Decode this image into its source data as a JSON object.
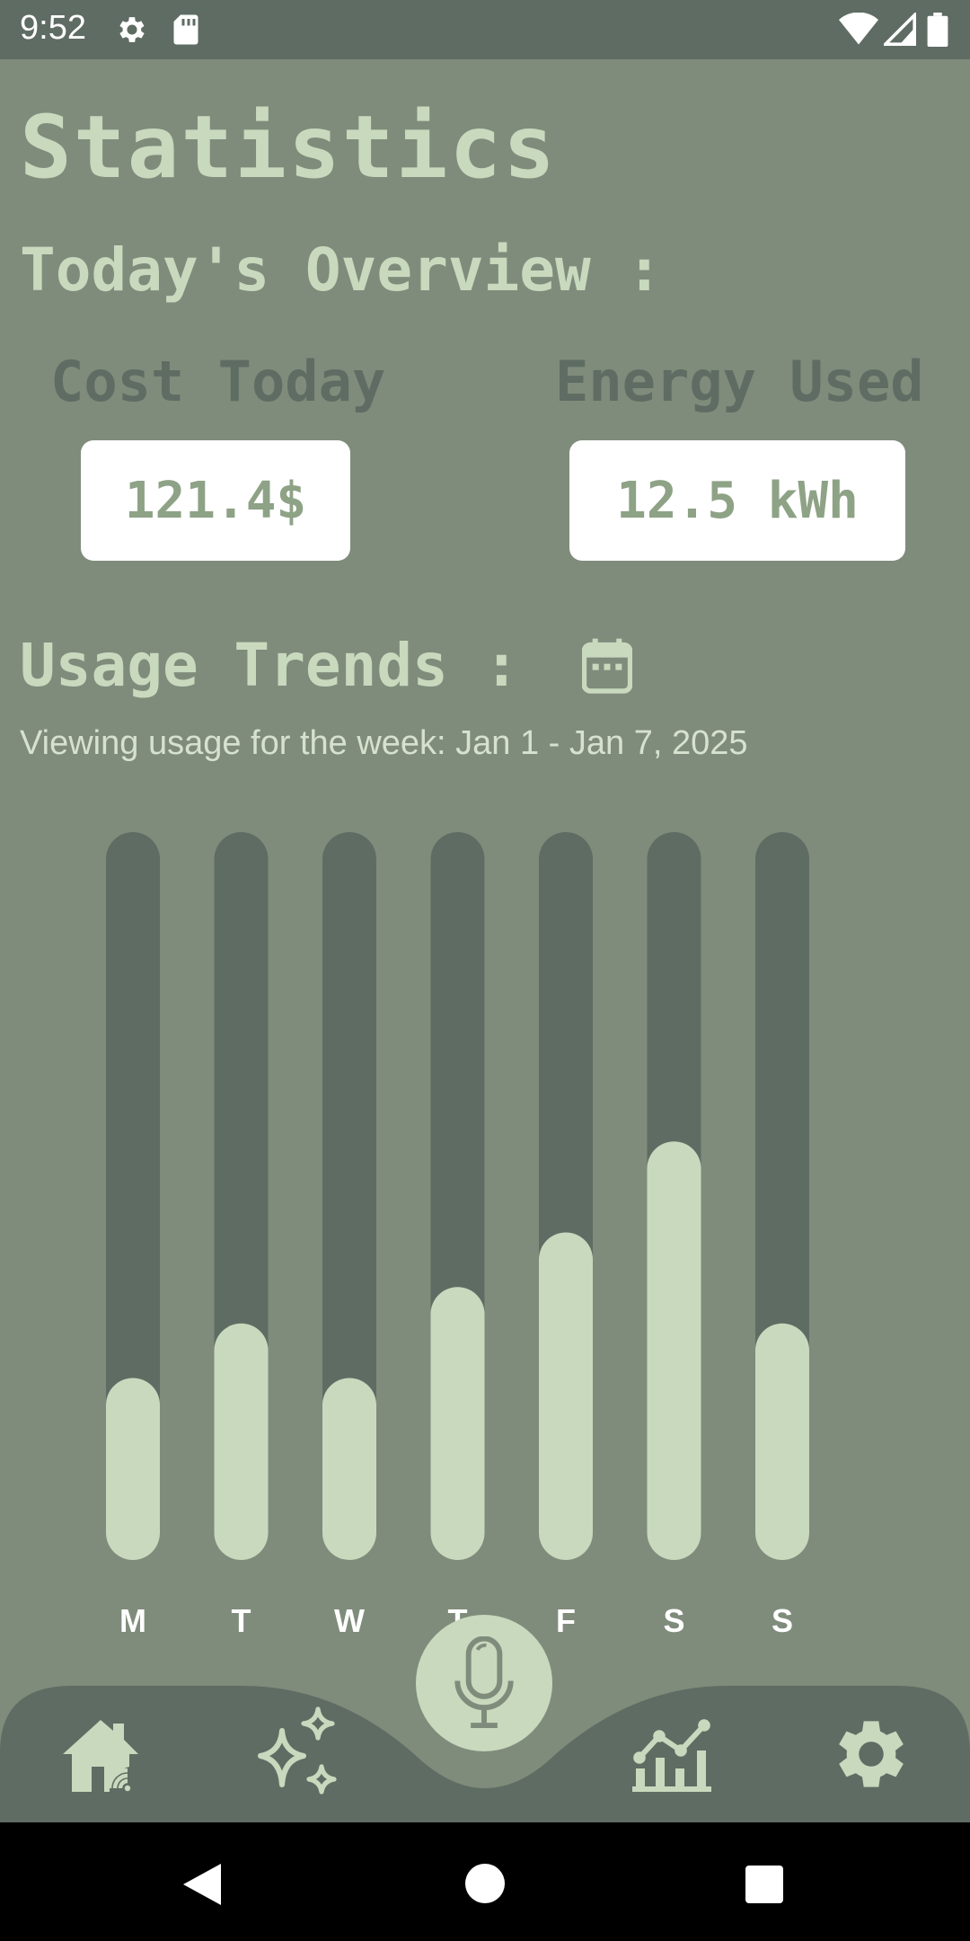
{
  "status_bar": {
    "time": "9:52",
    "left_icons": [
      "gear-icon",
      "sd-card-icon"
    ],
    "right_icons": [
      "wifi-icon",
      "signal-icon",
      "battery-icon"
    ]
  },
  "page_title": "Statistics",
  "overview": {
    "title": "Today's Overview :",
    "cost_label": "Cost Today",
    "cost_value": "121.4$",
    "energy_label": "Energy Used",
    "energy_value": "12.5 kWh"
  },
  "trends": {
    "title": "Usage Trends :",
    "date_icon": "calendar-icon",
    "subtitle": "Viewing usage for the week: Jan 1 - Jan 7, 2025"
  },
  "chart_data": {
    "type": "bar",
    "categories": [
      "M",
      "T",
      "W",
      "T",
      "F",
      "S",
      "S"
    ],
    "values": [
      0.25,
      0.325,
      0.25,
      0.375,
      0.45,
      0.575,
      0.325
    ],
    "ylim": [
      0,
      1
    ],
    "grid": false,
    "legend": "none"
  },
  "colors": {
    "background": "#7f8c7b",
    "accent": "#c8d9be",
    "dark": "#5f6c63",
    "value_text": "#8ea286"
  },
  "bottom_nav": {
    "items": [
      "home-wifi-icon",
      "sparkles-icon",
      "microphone-icon",
      "chart-icon",
      "gear-icon"
    ]
  },
  "system_nav": [
    "back-icon",
    "home-icon",
    "recents-icon"
  ]
}
